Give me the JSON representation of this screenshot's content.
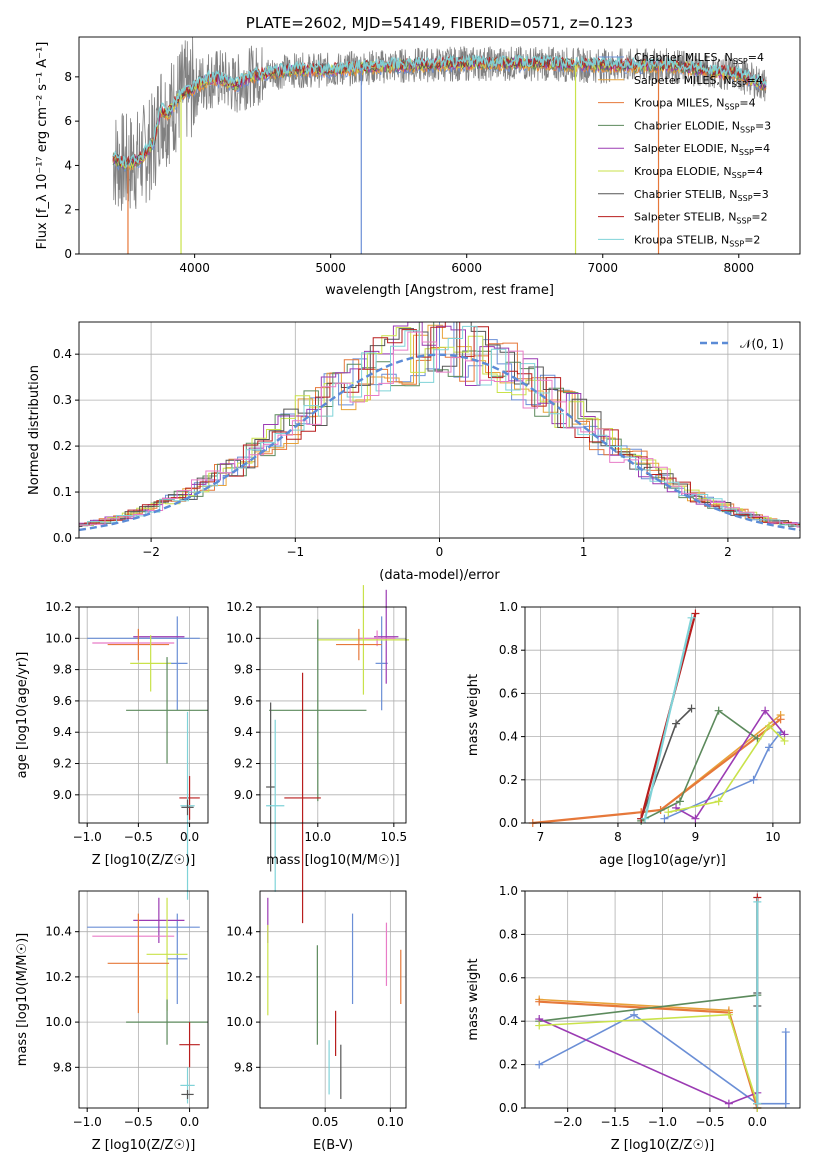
{
  "colors": {
    "Chabrier MILES": "#6b8fd6",
    "Salpeter MILES": "#e8a33a",
    "Kroupa MILES": "#e6783a",
    "Chabrier ELODIE": "#5c8a5c",
    "Salpeter ELODIE": "#9b3bb3",
    "Kroupa ELODIE": "#c9e24a",
    "Chabrier STELIB": "#555555",
    "Salpeter STELIB": "#b81e1e",
    "Kroupa STELIB": "#7fd3d8",
    "pink": "#e87cc7",
    "gauss": "#5b8bd6"
  },
  "chart_data": [
    {
      "type": "line",
      "title": "PLATE=2602, MJD=54149, FIBERID=0571, z=0.123",
      "xlabel": "wavelength [Angstrom, rest frame]",
      "ylabel": "Flux [f_λ 10⁻¹⁷ erg cm⁻² s⁻¹ A⁻¹]",
      "xlim": [
        3150,
        8450
      ],
      "ylim": [
        0,
        9.8
      ],
      "xticks": [
        "4000",
        "5000",
        "6000",
        "7000",
        "8000"
      ],
      "yticks": [
        "0",
        "2",
        "4",
        "6",
        "8"
      ],
      "legend_position": "top-right",
      "legend": [
        "Chabrier MILES, N_SSP=4",
        "Salpeter MILES, N_SSP=4",
        "Kroupa MILES, N_SSP=4",
        "Chabrier ELODIE, N_SSP=3",
        "Salpeter ELODIE, N_SSP=4",
        "Kroupa ELODIE, N_SSP=4",
        "Chabrier STELIB, N_SSP=3",
        "Salpeter STELIB, N_SSP=2",
        "Kroupa STELIB, N_SSP=2"
      ],
      "legend_display": [
        [
          "Chabrier MILES, N",
          "SSP",
          "=4"
        ],
        [
          "Salpeter MILES, N",
          "SSP",
          "=4"
        ],
        [
          "Kroupa MILES, N",
          "SSP",
          "=4"
        ],
        [
          "Chabrier ELODIE, N",
          "SSP",
          "=3"
        ],
        [
          "Salpeter ELODIE, N",
          "SSP",
          "=4"
        ],
        [
          "Kroupa ELODIE, N",
          "SSP",
          "=4"
        ],
        [
          "Chabrier STELIB, N",
          "SSP",
          "=3"
        ],
        [
          "Salpeter STELIB, N",
          "SSP",
          "=2"
        ],
        [
          "Kroupa STELIB, N",
          "SSP",
          "=2"
        ]
      ],
      "continuum_x": [
        3400,
        3500,
        3600,
        3700,
        3750,
        3800,
        3900,
        4000,
        4100,
        4200,
        4300,
        4400,
        4500,
        4700,
        5000,
        5200,
        5500,
        6000,
        6500,
        7000,
        7500,
        8000,
        8200
      ],
      "continuum_y": [
        4.3,
        4.0,
        4.3,
        5.0,
        6.5,
        6.3,
        7.2,
        7.5,
        7.9,
        7.9,
        7.6,
        8.0,
        8.1,
        8.3,
        8.3,
        8.4,
        8.5,
        8.6,
        8.6,
        8.5,
        8.5,
        8.1,
        7.6
      ],
      "data_x_range": [
        3400,
        8200
      ],
      "model_dips": [
        {
          "x": 3510,
          "to": 0,
          "series": "Kroupa MILES"
        },
        {
          "x": 3900,
          "to": 0,
          "series": "Kroupa ELODIE"
        },
        {
          "x": 5225,
          "to": 0,
          "series": "Chabrier MILES"
        },
        {
          "x": 6800,
          "to": 0,
          "series": "Kroupa ELODIE"
        },
        {
          "x": 7410,
          "to": 0,
          "series": "Kroupa MILES"
        }
      ]
    },
    {
      "type": "histogram",
      "xlabel": "(data-model)/error",
      "ylabel": "Normed distribution",
      "xlim": [
        -2.5,
        2.5
      ],
      "ylim": [
        0,
        0.47
      ],
      "xticks": [
        "−2",
        "−1",
        "0",
        "1",
        "2"
      ],
      "yticks": [
        "0.0",
        "0.1",
        "0.2",
        "0.3",
        "0.4"
      ],
      "legend": "𝒩(0, 1)",
      "legend_position": "top-right",
      "bin_width": 0.1,
      "gaussian": {
        "mu": 0,
        "sigma": 1
      }
    },
    {
      "type": "errorbar",
      "xlabel": "Z [log10(Z/Z☉)]",
      "ylabel": "age [log10(age/yr)]",
      "xlim": [
        -1.08,
        0.18
      ],
      "ylim": [
        8.82,
        10.2
      ],
      "xticks": [
        "−1.0",
        "−0.5",
        "0.0"
      ],
      "yticks": [
        "9.0",
        "9.2",
        "9.4",
        "9.6",
        "9.8",
        "10.0",
        "10.2"
      ],
      "points": [
        {
          "s": "Chabrier MILES",
          "x": -0.12,
          "xe": 0.1,
          "y": 9.84,
          "ye": 0.3
        },
        {
          "s": "Chabrier MILES",
          "x": -0.45,
          "xe": 0.55,
          "y": 10.0,
          "ye": 0.0
        },
        {
          "s": "Salpeter ELODIE",
          "x": -0.3,
          "xe": 0.25,
          "y": 10.01,
          "ye": 0.0
        },
        {
          "s": "pink",
          "x": -0.55,
          "xe": 0.4,
          "y": 9.97,
          "ye": 0.0
        },
        {
          "s": "Kroupa MILES",
          "x": -0.5,
          "xe": 0.3,
          "y": 9.96,
          "ye": 0.1
        },
        {
          "s": "Kroupa ELODIE",
          "x": -0.38,
          "xe": 0.2,
          "y": 9.84,
          "ye": 0.18
        },
        {
          "s": "Chabrier ELODIE",
          "x": -0.22,
          "xe": 0.4,
          "y": 9.54,
          "ye": 0.34
        },
        {
          "s": "Salpeter STELIB",
          "x": 0.0,
          "xe": 0.1,
          "y": 8.98,
          "ye": 0.14
        },
        {
          "s": "Kroupa STELIB",
          "x": -0.02,
          "xe": 0.07,
          "y": 8.93,
          "ye": 0.6
        },
        {
          "s": "Chabrier STELIB",
          "x": -0.02,
          "xe": 0.06,
          "y": 8.92,
          "ye": 0.05
        }
      ]
    },
    {
      "type": "errorbar",
      "xlabel": "mass [log10(M/M☉)]",
      "ylabel": "",
      "xlim": [
        9.62,
        10.58
      ],
      "ylim": [
        8.82,
        10.2
      ],
      "xticks": [
        "10.0",
        "10.5"
      ],
      "yticks": [
        "9.0",
        "9.2",
        "9.4",
        "9.6",
        "9.8",
        "10.0",
        "10.2"
      ],
      "points": [
        {
          "s": "Chabrier MILES",
          "x": 10.42,
          "xe": 0.04,
          "y": 9.84,
          "ye": 0.3
        },
        {
          "s": "Salpeter ELODIE",
          "x": 10.45,
          "xe": 0.08,
          "y": 10.01,
          "ye": 0.3
        },
        {
          "s": "pink",
          "x": 10.39,
          "xe": 0.12,
          "y": 10.0,
          "ye": 0.05
        },
        {
          "s": "Kroupa ELODIE",
          "x": 10.3,
          "xe": 0.3,
          "y": 9.99,
          "ye": 0.35
        },
        {
          "s": "Kroupa MILES",
          "x": 10.27,
          "xe": 0.15,
          "y": 9.96,
          "ye": 0.1
        },
        {
          "s": "Chabrier ELODIE",
          "x": 10.0,
          "xe": 0.32,
          "y": 9.54,
          "ye": 0.58
        },
        {
          "s": "Salpeter STELIB",
          "x": 9.9,
          "xe": 0.12,
          "y": 8.98,
          "ye": 0.8
        },
        {
          "s": "Chabrier STELIB",
          "x": 9.69,
          "xe": 0.03,
          "y": 9.05,
          "ye": 0.54
        },
        {
          "s": "Kroupa STELIB",
          "x": 9.72,
          "xe": 0.06,
          "y": 8.93,
          "ye": 0.55
        }
      ]
    },
    {
      "type": "line",
      "xlabel": "age [log10(age/yr)]",
      "ylabel": "mass weight",
      "xlim": [
        6.8,
        10.35
      ],
      "ylim": [
        0,
        1
      ],
      "xticks": [
        "7",
        "8",
        "9",
        "10"
      ],
      "yticks": [
        "0.0",
        "0.2",
        "0.4",
        "0.6",
        "0.8",
        "1.0"
      ],
      "series": [
        {
          "name": "Chabrier MILES",
          "x": [
            8.6,
            9.75,
            9.95,
            10.1
          ],
          "y": [
            0.02,
            0.2,
            0.35,
            0.42
          ]
        },
        {
          "name": "Salpeter MILES",
          "x": [
            8.3,
            8.55,
            10.1
          ],
          "y": [
            0.05,
            0.06,
            0.5
          ]
        },
        {
          "name": "Kroupa MILES",
          "x": [
            6.9,
            8.3,
            8.55,
            10.1
          ],
          "y": [
            0.0,
            0.05,
            0.06,
            0.48
          ]
        },
        {
          "name": "Chabrier ELODIE",
          "x": [
            8.3,
            8.8,
            9.3,
            9.8
          ],
          "y": [
            0.01,
            0.1,
            0.52,
            0.39
          ]
        },
        {
          "name": "Salpeter ELODIE",
          "x": [
            8.75,
            9.0,
            9.9,
            10.15
          ],
          "y": [
            0.07,
            0.02,
            0.52,
            0.41
          ]
        },
        {
          "name": "Kroupa ELODIE",
          "x": [
            8.65,
            9.3,
            9.95,
            10.15
          ],
          "y": [
            0.05,
            0.1,
            0.45,
            0.38
          ]
        },
        {
          "name": "Chabrier STELIB",
          "x": [
            8.3,
            8.75,
            8.95
          ],
          "y": [
            0.02,
            0.46,
            0.53
          ]
        },
        {
          "name": "Salpeter STELIB",
          "x": [
            8.3,
            9.0
          ],
          "y": [
            0.02,
            0.97
          ]
        },
        {
          "name": "Kroupa STELIB",
          "x": [
            8.35,
            8.95
          ],
          "y": [
            0.02,
            0.95
          ]
        }
      ]
    },
    {
      "type": "errorbar",
      "xlabel": "Z [log10(Z/Z☉)]",
      "ylabel": "mass [log10(M/M☉)]",
      "xlim": [
        -1.08,
        0.18
      ],
      "ylim": [
        9.62,
        10.58
      ],
      "xticks": [
        "−1.0",
        "−0.5",
        "0.0"
      ],
      "yticks": [
        "9.8",
        "10.0",
        "10.2",
        "10.4"
      ],
      "points": [
        {
          "s": "Chabrier MILES",
          "x": -0.45,
          "xe": 0.55,
          "y": 10.42,
          "ye": 0.0
        },
        {
          "s": "Chabrier MILES",
          "x": -0.12,
          "xe": 0.1,
          "y": 10.28,
          "ye": 0.2
        },
        {
          "s": "Salpeter ELODIE",
          "x": -0.3,
          "xe": 0.25,
          "y": 10.45,
          "ye": 0.1
        },
        {
          "s": "pink",
          "x": -0.55,
          "xe": 0.4,
          "y": 10.38,
          "ye": 0.0
        },
        {
          "s": "Kroupa ELODIE",
          "x": -0.22,
          "xe": 0.2,
          "y": 10.3,
          "ye": 0.25
        },
        {
          "s": "Kroupa MILES",
          "x": -0.5,
          "xe": 0.3,
          "y": 10.26,
          "ye": 0.22
        },
        {
          "s": "Chabrier ELODIE",
          "x": -0.22,
          "xe": 0.4,
          "y": 10.0,
          "ye": 0.1
        },
        {
          "s": "Salpeter STELIB",
          "x": 0.0,
          "xe": 0.1,
          "y": 9.9,
          "ye": 0.1
        },
        {
          "s": "Kroupa STELIB",
          "x": -0.02,
          "xe": 0.07,
          "y": 9.72,
          "ye": 0.08
        },
        {
          "s": "Chabrier STELIB",
          "x": -0.02,
          "xe": 0.06,
          "y": 9.68,
          "ye": 0.02
        }
      ]
    },
    {
      "type": "errorbar",
      "xlabel": "E(B-V)",
      "ylabel": "",
      "xlim": [
        0.0,
        0.112
      ],
      "ylim": [
        9.62,
        10.58
      ],
      "xticks": [
        "0.05",
        "0.10"
      ],
      "yticks": [
        "9.8",
        "10.0",
        "10.2",
        "10.4"
      ],
      "points": [
        {
          "s": "Salpeter ELODIE",
          "x": 0.006,
          "xe": 0.0,
          "y": 10.45,
          "ye": 0.1
        },
        {
          "s": "Kroupa ELODIE",
          "x": 0.006,
          "xe": 0.0,
          "y": 10.23,
          "ye": 0.2
        },
        {
          "s": "Chabrier ELODIE",
          "x": 0.044,
          "xe": 0.0,
          "y": 10.12,
          "ye": 0.22
        },
        {
          "s": "Kroupa STELIB",
          "x": 0.053,
          "xe": 0.0,
          "y": 9.8,
          "ye": 0.12
        },
        {
          "s": "Salpeter STELIB",
          "x": 0.058,
          "xe": 0.0,
          "y": 9.95,
          "ye": 0.1
        },
        {
          "s": "Chabrier STELIB",
          "x": 0.062,
          "xe": 0.0,
          "y": 9.78,
          "ye": 0.12
        },
        {
          "s": "Chabrier MILES",
          "x": 0.071,
          "xe": 0.0,
          "y": 10.28,
          "ye": 0.2
        },
        {
          "s": "pink",
          "x": 0.097,
          "xe": 0.0,
          "y": 10.3,
          "ye": 0.14
        },
        {
          "s": "Kroupa MILES",
          "x": 0.108,
          "xe": 0.0,
          "y": 10.2,
          "ye": 0.12
        }
      ]
    },
    {
      "type": "line",
      "xlabel": "Z [log10(Z/Z☉)]",
      "ylabel": "mass weight",
      "xlim": [
        -2.45,
        0.45
      ],
      "ylim": [
        0,
        1
      ],
      "xticks": [
        "−2.0",
        "−1.5",
        "−1.0",
        "−0.5",
        "0.0"
      ],
      "yticks": [
        "0.0",
        "0.2",
        "0.4",
        "0.6",
        "0.8",
        "1.0"
      ],
      "series": [
        {
          "name": "Chabrier MILES",
          "x": [
            -2.3,
            -1.3,
            0.0,
            0.3,
            0.3
          ],
          "y": [
            0.2,
            0.43,
            0.02,
            0.02,
            0.35
          ]
        },
        {
          "name": "Salpeter MILES",
          "x": [
            -2.3,
            -0.3,
            0.0
          ],
          "y": [
            0.5,
            0.45,
            0.0
          ]
        },
        {
          "name": "Kroupa MILES",
          "x": [
            -2.3,
            -0.3,
            0.0
          ],
          "y": [
            0.49,
            0.44,
            0.0
          ]
        },
        {
          "name": "Chabrier ELODIE",
          "x": [
            -2.3,
            0.0,
            0.0
          ],
          "y": [
            0.4,
            0.52,
            0.02
          ]
        },
        {
          "name": "Salpeter ELODIE",
          "x": [
            -2.3,
            -0.3,
            0.0,
            0.0
          ],
          "y": [
            0.41,
            0.02,
            0.07,
            0.0
          ]
        },
        {
          "name": "Kroupa ELODIE",
          "x": [
            -2.3,
            -0.3,
            0.0,
            0.0
          ],
          "y": [
            0.38,
            0.43,
            0.02,
            0.0
          ]
        },
        {
          "name": "Chabrier STELIB",
          "x": [
            0.0,
            0.0
          ],
          "y": [
            0.47,
            0.53
          ]
        },
        {
          "name": "Salpeter STELIB",
          "x": [
            0.0,
            0.0
          ],
          "y": [
            0.02,
            0.97
          ]
        },
        {
          "name": "Kroupa STELIB",
          "x": [
            0.0,
            0.0
          ],
          "y": [
            0.02,
            0.95
          ]
        }
      ]
    }
  ]
}
